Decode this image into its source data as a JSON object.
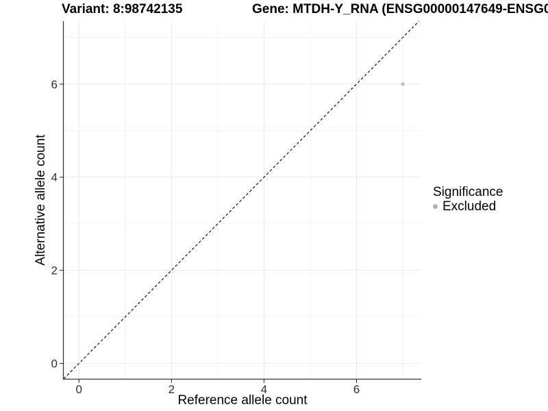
{
  "chart_data": {
    "type": "scatter",
    "titles": {
      "left": "Variant: 8:98742135",
      "right": "Gene: MTDH-Y_RNA (ENSG00000147649-ENSG0"
    },
    "xlabel": "Reference allele count",
    "ylabel": "Alternative allele count",
    "xlim": [
      -0.33,
      7.4
    ],
    "ylim": [
      -0.33,
      7.35
    ],
    "xticks": [
      0,
      2,
      4,
      6
    ],
    "yticks": [
      0,
      2,
      4,
      6
    ],
    "x_minor_ticks": [
      1,
      3,
      5,
      7
    ],
    "y_minor_ticks": [
      1,
      3,
      5,
      7
    ],
    "grid": "major+minor",
    "legend_position": "right",
    "identity_line": {
      "slope": 1,
      "intercept": 0,
      "style": "dashed",
      "color": "#000000"
    },
    "series": [
      {
        "name": "Excluded",
        "color": "#bcbcbc",
        "point_radius": 2.6,
        "points": [
          {
            "x": 7,
            "y": 6
          }
        ]
      }
    ],
    "legend": {
      "title": "Significance",
      "entries": [
        {
          "label": "Excluded",
          "color": "#b0b0b0"
        }
      ]
    },
    "style": {
      "background": "#ffffff",
      "grid_major_color": "#e8e8e8",
      "grid_minor_color": "#f2f2f2",
      "axis_line_color": "#333333",
      "tick_label_color": "#303030",
      "title_color": "#000000"
    }
  }
}
